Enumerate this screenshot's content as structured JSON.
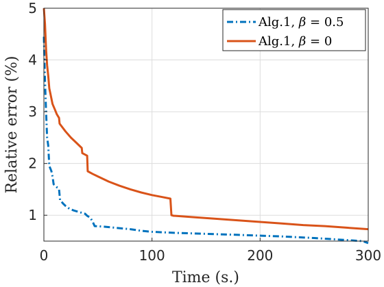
{
  "chart_data": {
    "type": "line",
    "xlabel": "Time (s.)",
    "ylabel": "Relative error (%)",
    "xlim": [
      0,
      300
    ],
    "ylim": [
      0.5,
      5
    ],
    "xticks": [
      "0",
      "100",
      "200",
      "300"
    ],
    "yticks": [
      "1",
      "2",
      "3",
      "4",
      "5"
    ],
    "grid": true,
    "legend_position": "top-right",
    "series": [
      {
        "name": "Alg.1, β = 0.5",
        "legend_prefix": "Alg.1, ",
        "legend_symbol": "β",
        "legend_suffix": " = 0.5",
        "color": "#0072BD",
        "style": "dash-dot",
        "x": [
          0,
          1,
          2,
          3,
          4,
          5,
          6,
          7,
          8,
          9,
          10,
          11,
          12,
          13,
          14,
          15,
          16,
          18,
          20,
          24,
          28,
          33,
          38,
          40,
          43,
          45,
          47,
          55,
          65,
          80,
          90,
          100,
          120,
          150,
          180,
          220,
          250,
          280,
          295,
          300
        ],
        "y": [
          4.45,
          3.6,
          3.0,
          2.5,
          2.35,
          1.95,
          1.9,
          1.85,
          1.75,
          1.6,
          1.58,
          1.56,
          1.54,
          1.53,
          1.5,
          1.28,
          1.27,
          1.22,
          1.18,
          1.12,
          1.09,
          1.06,
          1.03,
          0.99,
          0.95,
          0.88,
          0.79,
          0.78,
          0.76,
          0.73,
          0.7,
          0.68,
          0.66,
          0.64,
          0.62,
          0.59,
          0.56,
          0.52,
          0.5,
          0.46
        ]
      },
      {
        "name": "Alg.1, β = 0",
        "legend_prefix": "Alg.1, ",
        "legend_symbol": "β",
        "legend_suffix": " = 0",
        "color": "#D95319",
        "style": "solid",
        "x": [
          0,
          1,
          2,
          3,
          4,
          5,
          6,
          8,
          10,
          12,
          14,
          14.5,
          20,
          25,
          30,
          35,
          35.5,
          40,
          40.5,
          45,
          50,
          60,
          70,
          80,
          90,
          100,
          110,
          117,
          118,
          120,
          140,
          160,
          180,
          200,
          220,
          240,
          260,
          280,
          300
        ],
        "y": [
          5.0,
          4.7,
          4.2,
          3.9,
          3.7,
          3.45,
          3.35,
          3.15,
          3.05,
          2.95,
          2.88,
          2.77,
          2.62,
          2.5,
          2.4,
          2.3,
          2.2,
          2.15,
          1.85,
          1.8,
          1.75,
          1.65,
          1.57,
          1.5,
          1.44,
          1.39,
          1.35,
          1.32,
          1.0,
          0.99,
          0.96,
          0.93,
          0.9,
          0.87,
          0.84,
          0.81,
          0.79,
          0.76,
          0.73
        ]
      }
    ]
  }
}
